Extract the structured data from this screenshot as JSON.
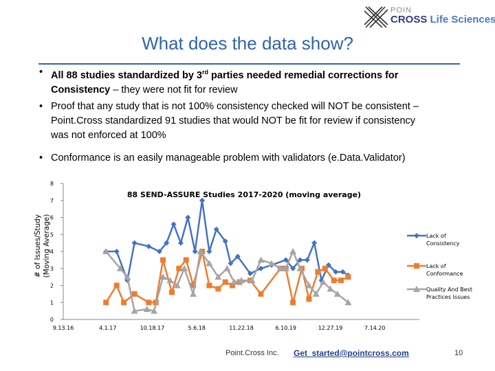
{
  "logo": {
    "top_text": "POIN",
    "main_text": "CROSS",
    "sub_text": "Life Sciences"
  },
  "slide": {
    "title": "What does the data show?"
  },
  "bullets": [
    {
      "pre": "All 88 studies standardized by 3",
      "sup": "rd",
      "mid": " parties needed remedial corrections for",
      "line2_bold": "Consistency",
      "line2_rest": " – they were not fit for review"
    },
    {
      "line1": "Proof that any study that is not 100% consistency checked will NOT be consistent –",
      "line2": "Point.Cross standardized 91 studies that would NOT be fit for review if consistency",
      "line3": "was not enforced at 100%"
    },
    {
      "line1": "Conformance is an easily manageable problem with validators (e.Data.Validator)"
    }
  ],
  "footer": {
    "company": "Point.Cross Inc.",
    "email": "Get_started@pointcross.com",
    "page": "10"
  },
  "chart_data": {
    "type": "line",
    "title": "88 SEND-ASSURE Studies 2017-2020 (moving average)",
    "ylabel_line1": "# of Issues/Study",
    "ylabel_line2": "(Moving Average)",
    "xlabel": "",
    "ylim": [
      0,
      8
    ],
    "yticks": [
      "0",
      "1",
      "2",
      "3",
      "4",
      "5",
      "6",
      "7",
      "8"
    ],
    "xticks": [
      "9.13.16",
      "4.1.17",
      "10.18.17",
      "5.6.18",
      "11.22.18",
      "6.10.19",
      "12.27.19",
      "7.14.20"
    ],
    "grid": false,
    "legend_position": "right",
    "series": [
      {
        "name": "Lack of Consistency",
        "legend_line1": "Lack of",
        "legend_line2": "Consistency",
        "color": "#4472c4",
        "marker": "diamond",
        "values": [
          [
            0.12,
            4.0
          ],
          [
            0.15,
            4.0
          ],
          [
            0.18,
            2.3
          ],
          [
            0.2,
            4.5
          ],
          [
            0.24,
            4.3
          ],
          [
            0.27,
            4.0
          ],
          [
            0.29,
            4.5
          ],
          [
            0.31,
            5.6
          ],
          [
            0.33,
            4.5
          ],
          [
            0.35,
            6.0
          ],
          [
            0.37,
            4.0
          ],
          [
            0.39,
            7.0
          ],
          [
            0.41,
            4.0
          ],
          [
            0.43,
            5.3
          ],
          [
            0.455,
            4.6
          ],
          [
            0.47,
            3.3
          ],
          [
            0.49,
            3.7
          ],
          [
            0.525,
            2.7
          ],
          [
            0.555,
            3.0
          ],
          [
            0.585,
            3.2
          ],
          [
            0.625,
            3.5
          ],
          [
            0.645,
            3.0
          ],
          [
            0.665,
            3.5
          ],
          [
            0.685,
            3.5
          ],
          [
            0.705,
            4.5
          ],
          [
            0.725,
            2.3
          ],
          [
            0.745,
            3.2
          ],
          [
            0.765,
            2.8
          ],
          [
            0.785,
            2.8
          ],
          [
            0.8,
            2.6
          ]
        ]
      },
      {
        "name": "Lack of Conformance",
        "legend_line1": "Lack of",
        "legend_line2": "Conformance",
        "color": "#ed7d31",
        "marker": "square",
        "values": [
          [
            0.12,
            1.0
          ],
          [
            0.15,
            2.0
          ],
          [
            0.17,
            1.0
          ],
          [
            0.2,
            1.5
          ],
          [
            0.24,
            1.0
          ],
          [
            0.26,
            1.0
          ],
          [
            0.28,
            3.5
          ],
          [
            0.305,
            1.6
          ],
          [
            0.325,
            3.0
          ],
          [
            0.345,
            3.5
          ],
          [
            0.365,
            2.0
          ],
          [
            0.39,
            4.0
          ],
          [
            0.41,
            2.0
          ],
          [
            0.435,
            1.8
          ],
          [
            0.455,
            2.2
          ],
          [
            0.475,
            2.0
          ],
          [
            0.495,
            2.2
          ],
          [
            0.525,
            2.3
          ],
          [
            0.555,
            1.5
          ],
          [
            0.61,
            3.0
          ],
          [
            0.625,
            3.0
          ],
          [
            0.645,
            1.0
          ],
          [
            0.67,
            3.0
          ],
          [
            0.69,
            1.2
          ],
          [
            0.715,
            2.8
          ],
          [
            0.735,
            3.0
          ],
          [
            0.76,
            2.3
          ],
          [
            0.78,
            2.3
          ],
          [
            0.8,
            2.5
          ]
        ]
      },
      {
        "name": "Quality And Best Practices Issues",
        "legend_line1": "Quality And Best",
        "legend_line2": "Practices Issues",
        "color": "#a5a5a5",
        "marker": "triangle",
        "values": [
          [
            0.12,
            4.0
          ],
          [
            0.16,
            3.0
          ],
          [
            0.18,
            2.5
          ],
          [
            0.2,
            0.5
          ],
          [
            0.235,
            0.6
          ],
          [
            0.255,
            0.5
          ],
          [
            0.28,
            2.5
          ],
          [
            0.3,
            2.3
          ],
          [
            0.32,
            2.0
          ],
          [
            0.34,
            3.0
          ],
          [
            0.365,
            1.5
          ],
          [
            0.385,
            4.0
          ],
          [
            0.41,
            3.3
          ],
          [
            0.435,
            2.5
          ],
          [
            0.46,
            3.0
          ],
          [
            0.48,
            2.2
          ],
          [
            0.5,
            2.3
          ],
          [
            0.53,
            2.3
          ],
          [
            0.555,
            3.5
          ],
          [
            0.585,
            3.3
          ],
          [
            0.61,
            3.0
          ],
          [
            0.625,
            3.0
          ],
          [
            0.645,
            4.0
          ],
          [
            0.665,
            3.0
          ],
          [
            0.69,
            2.0
          ],
          [
            0.71,
            1.5
          ],
          [
            0.73,
            2.2
          ],
          [
            0.75,
            1.8
          ],
          [
            0.77,
            1.5
          ],
          [
            0.8,
            1.0
          ]
        ]
      }
    ]
  }
}
